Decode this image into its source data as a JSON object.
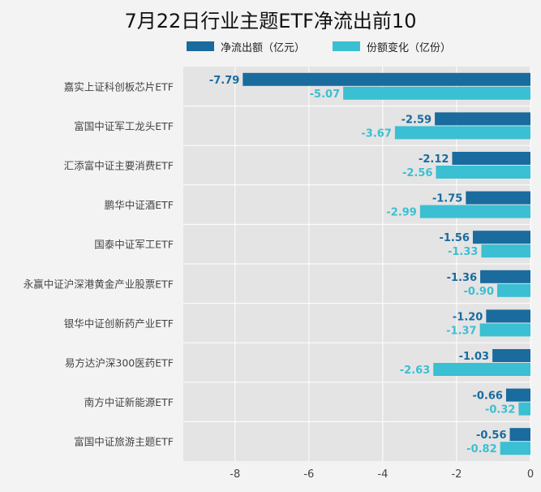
{
  "title": "7月22日行业主题ETF净流出前10",
  "colors": {
    "series1": "#1a6b9e",
    "series2": "#3bbfd2",
    "plot_bg": "#e4e4e4",
    "grid": "#ffffff"
  },
  "chart_data": {
    "type": "bar",
    "orientation": "horizontal",
    "title": "7月22日行业主题ETF净流出前10",
    "categories": [
      "嘉实上证科创板芯片ETF",
      "富国中证军工龙头ETF",
      "汇添富中证主要消费ETF",
      "鹏华中证酒ETF",
      "国泰中证军工ETF",
      "永赢中证沪深港黄金产业股票ETF",
      "银华中证创新药产业ETF",
      "易方达沪深300医药ETF",
      "南方中证新能源ETF",
      "富国中证旅游主题ETF"
    ],
    "series": [
      {
        "name": "净流出额（亿元）",
        "values": [
          -7.79,
          -2.59,
          -2.12,
          -1.75,
          -1.56,
          -1.36,
          -1.2,
          -1.03,
          -0.66,
          -0.56
        ]
      },
      {
        "name": "份额变化（亿份）",
        "values": [
          -5.07,
          -3.67,
          -2.56,
          -2.99,
          -1.33,
          -0.9,
          -1.37,
          -2.63,
          -0.32,
          -0.82
        ]
      }
    ],
    "xlim": [
      -9.4,
      0
    ],
    "xticks": [
      -8,
      -6,
      -4,
      -2,
      0
    ],
    "grid": true,
    "legend": "top",
    "data_labels": true
  }
}
